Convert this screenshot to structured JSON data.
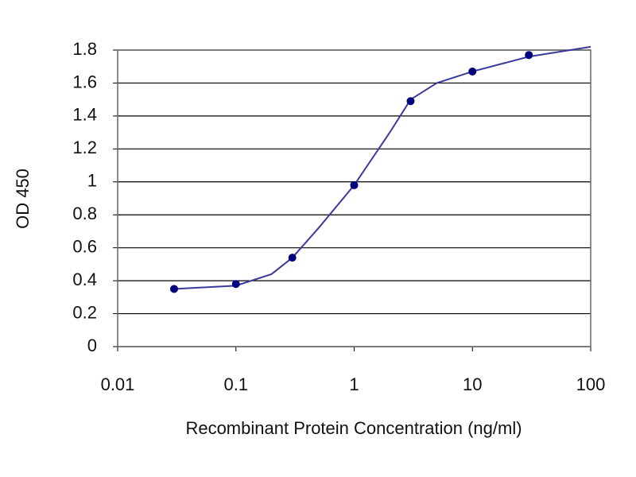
{
  "chart_data": {
    "type": "scatter",
    "y_label": "OD 450",
    "x_label": "Recombinant Protein Concentration (ng/ml)",
    "x_log": true,
    "xlim": [
      0.01,
      100
    ],
    "xticks": [
      0.01,
      0.1,
      1,
      10,
      100
    ],
    "ylim": [
      0,
      1.8
    ],
    "yticks": [
      0,
      0.2,
      0.4,
      0.6,
      0.8,
      1,
      1.2,
      1.4,
      1.6,
      1.8
    ],
    "grid": true,
    "series": [
      {
        "color": "#00007f",
        "x": [
          0.03,
          0.1,
          0.3,
          1,
          3,
          10,
          30
        ],
        "values": [
          0.35,
          0.38,
          0.54,
          0.98,
          1.49,
          1.67,
          1.77
        ]
      },
      {
        "color": "#3a3a9a",
        "line": true,
        "x": [
          0.03,
          0.1,
          0.2,
          0.3,
          0.5,
          1,
          2,
          3,
          5,
          10,
          30,
          100
        ],
        "values": [
          0.35,
          0.37,
          0.44,
          0.54,
          0.72,
          0.98,
          1.3,
          1.5,
          1.6,
          1.67,
          1.76,
          1.82
        ]
      }
    ]
  }
}
